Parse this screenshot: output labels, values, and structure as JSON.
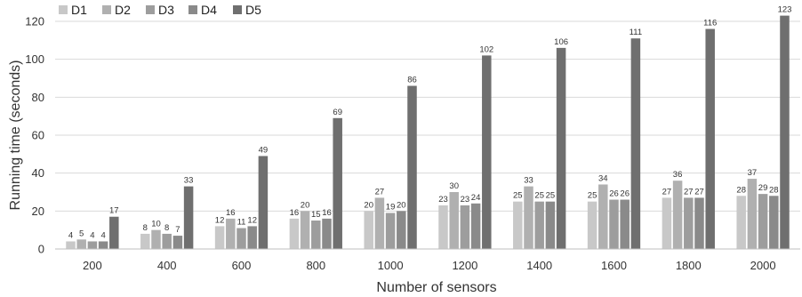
{
  "chart_data": {
    "type": "bar",
    "xlabel": "Number of sensors",
    "ylabel": "Running time  (seconds)",
    "ylim": [
      0,
      120
    ],
    "yticks": [
      0,
      20,
      40,
      60,
      80,
      100,
      120
    ],
    "grid": true,
    "legend_position": "top-left",
    "categories": [
      "200",
      "400",
      "600",
      "800",
      "1000",
      "1200",
      "1400",
      "1600",
      "1800",
      "2000"
    ],
    "series": [
      {
        "name": "D1",
        "color": "#c8c8c8",
        "values": [
          4,
          8,
          12,
          16,
          20,
          23,
          25,
          25,
          27,
          28
        ]
      },
      {
        "name": "D2",
        "color": "#b0b0b0",
        "values": [
          5,
          10,
          16,
          20,
          27,
          30,
          33,
          34,
          36,
          37
        ]
      },
      {
        "name": "D3",
        "color": "#9d9d9d",
        "values": [
          4,
          8,
          11,
          15,
          19,
          23,
          25,
          26,
          27,
          29
        ]
      },
      {
        "name": "D4",
        "color": "#8a8a8a",
        "values": [
          4,
          7,
          12,
          16,
          20,
          24,
          25,
          26,
          27,
          28
        ]
      },
      {
        "name": "D5",
        "color": "#6f6f6f",
        "values": [
          17,
          33,
          49,
          69,
          86,
          102,
          106,
          111,
          116,
          123
        ]
      }
    ]
  }
}
